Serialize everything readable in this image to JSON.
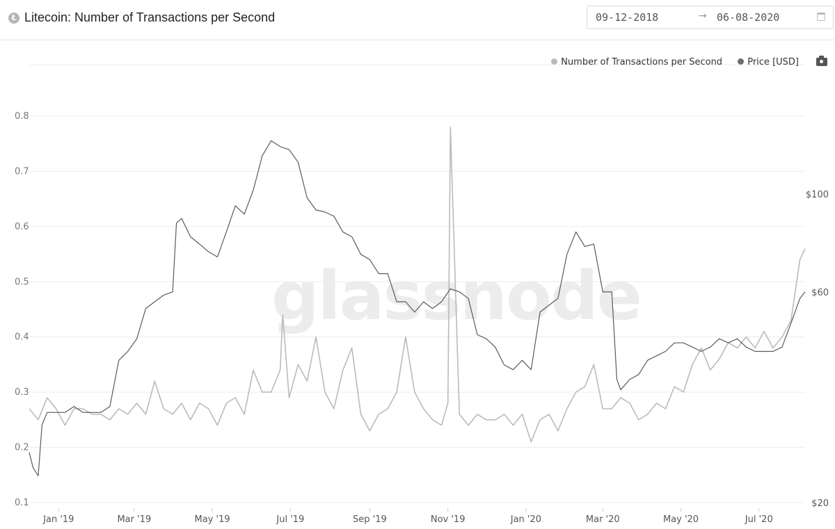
{
  "header": {
    "title": "Litecoin: Number of Transactions per Second",
    "coin_icon": "litecoin-icon",
    "date_from": "09-12-2018",
    "date_arrow": "→",
    "date_to": "06-08-2020"
  },
  "watermark": "glassnode",
  "legend": [
    {
      "label": "Number of Transactions per Second",
      "color": "#bdb9b9"
    },
    {
      "label": "Price [USD]",
      "color": "#6e6e6e"
    }
  ],
  "colors": {
    "tps_line": "#bdb9b9",
    "price_line": "#5a5a5a",
    "grid": "#ececec",
    "axis_text": "#666666"
  },
  "chart_data": {
    "type": "line",
    "x_ticks": [
      "Jan '19",
      "Mar '19",
      "May '19",
      "Jul '19",
      "Sep '19",
      "Nov '19",
      "Jan '20",
      "Mar '20",
      "May '20",
      "Jul '20"
    ],
    "y_left": {
      "ticks": [
        "0.1",
        "0.2",
        "0.3",
        "0.4",
        "0.5",
        "0.6",
        "0.7",
        "0.8"
      ],
      "range": [
        0.1,
        0.8
      ]
    },
    "y_right": {
      "ticks": [
        "$20",
        "$60",
        "$100"
      ],
      "scale": "log"
    },
    "grid": true,
    "legend_position": "top-right",
    "series": [
      {
        "name": "Number of Transactions per Second",
        "axis": "left",
        "x": [
          "2018-12-09",
          "2018-12-16",
          "2018-12-23",
          "2018-12-30",
          "2019-01-06",
          "2019-01-13",
          "2019-01-20",
          "2019-01-27",
          "2019-02-03",
          "2019-02-10",
          "2019-02-17",
          "2019-02-24",
          "2019-03-03",
          "2019-03-10",
          "2019-03-17",
          "2019-03-24",
          "2019-03-31",
          "2019-04-07",
          "2019-04-14",
          "2019-04-21",
          "2019-04-28",
          "2019-05-05",
          "2019-05-12",
          "2019-05-19",
          "2019-05-26",
          "2019-06-02",
          "2019-06-09",
          "2019-06-16",
          "2019-06-23",
          "2019-06-25",
          "2019-06-30",
          "2019-07-07",
          "2019-07-14",
          "2019-07-21",
          "2019-07-28",
          "2019-08-04",
          "2019-08-11",
          "2019-08-18",
          "2019-08-25",
          "2019-09-01",
          "2019-09-08",
          "2019-09-15",
          "2019-09-22",
          "2019-09-29",
          "2019-10-06",
          "2019-10-13",
          "2019-10-20",
          "2019-10-27",
          "2019-11-01",
          "2019-11-03",
          "2019-11-10",
          "2019-11-17",
          "2019-11-24",
          "2019-12-01",
          "2019-12-08",
          "2019-12-15",
          "2019-12-22",
          "2019-12-29",
          "2020-01-05",
          "2020-01-12",
          "2020-01-19",
          "2020-01-26",
          "2020-02-02",
          "2020-02-09",
          "2020-02-16",
          "2020-02-23",
          "2020-03-01",
          "2020-03-08",
          "2020-03-15",
          "2020-03-22",
          "2020-03-29",
          "2020-04-05",
          "2020-04-12",
          "2020-04-19",
          "2020-04-26",
          "2020-05-03",
          "2020-05-10",
          "2020-05-17",
          "2020-05-24",
          "2020-05-31",
          "2020-06-07",
          "2020-06-14",
          "2020-06-21",
          "2020-06-28",
          "2020-07-05",
          "2020-07-12",
          "2020-07-19",
          "2020-07-26",
          "2020-08-02",
          "2020-08-06"
        ],
        "values": [
          0.27,
          0.25,
          0.29,
          0.27,
          0.24,
          0.27,
          0.27,
          0.26,
          0.26,
          0.25,
          0.27,
          0.26,
          0.28,
          0.26,
          0.32,
          0.27,
          0.26,
          0.28,
          0.25,
          0.28,
          0.27,
          0.24,
          0.28,
          0.29,
          0.26,
          0.34,
          0.3,
          0.3,
          0.34,
          0.44,
          0.29,
          0.35,
          0.32,
          0.4,
          0.3,
          0.27,
          0.34,
          0.38,
          0.26,
          0.23,
          0.26,
          0.27,
          0.3,
          0.4,
          0.3,
          0.27,
          0.25,
          0.24,
          0.28,
          0.78,
          0.26,
          0.24,
          0.26,
          0.25,
          0.25,
          0.26,
          0.24,
          0.26,
          0.21,
          0.25,
          0.26,
          0.23,
          0.27,
          0.3,
          0.31,
          0.35,
          0.27,
          0.27,
          0.29,
          0.28,
          0.25,
          0.26,
          0.28,
          0.27,
          0.31,
          0.3,
          0.35,
          0.38,
          0.34,
          0.36,
          0.39,
          0.38,
          0.4,
          0.38,
          0.41,
          0.38,
          0.4,
          0.43,
          0.54,
          0.56
        ]
      },
      {
        "name": "Price [USD]",
        "axis": "right",
        "x": [
          "2018-12-09",
          "2018-12-12",
          "2018-12-16",
          "2018-12-19",
          "2018-12-23",
          "2018-12-30",
          "2019-01-06",
          "2019-01-13",
          "2019-01-20",
          "2019-01-27",
          "2019-02-03",
          "2019-02-10",
          "2019-02-17",
          "2019-02-24",
          "2019-03-03",
          "2019-03-10",
          "2019-03-17",
          "2019-03-24",
          "2019-03-31",
          "2019-04-03",
          "2019-04-07",
          "2019-04-14",
          "2019-04-21",
          "2019-04-28",
          "2019-05-05",
          "2019-05-12",
          "2019-05-19",
          "2019-05-26",
          "2019-06-02",
          "2019-06-09",
          "2019-06-16",
          "2019-06-23",
          "2019-06-30",
          "2019-07-07",
          "2019-07-14",
          "2019-07-21",
          "2019-07-28",
          "2019-08-04",
          "2019-08-11",
          "2019-08-18",
          "2019-08-25",
          "2019-09-01",
          "2019-09-08",
          "2019-09-15",
          "2019-09-22",
          "2019-09-29",
          "2019-10-06",
          "2019-10-13",
          "2019-10-20",
          "2019-10-27",
          "2019-11-03",
          "2019-11-10",
          "2019-11-17",
          "2019-11-24",
          "2019-12-01",
          "2019-12-08",
          "2019-12-15",
          "2019-12-22",
          "2019-12-29",
          "2020-01-05",
          "2020-01-12",
          "2020-01-19",
          "2020-01-26",
          "2020-02-02",
          "2020-02-09",
          "2020-02-16",
          "2020-02-23",
          "2020-03-01",
          "2020-03-08",
          "2020-03-12",
          "2020-03-15",
          "2020-03-22",
          "2020-03-29",
          "2020-04-05",
          "2020-04-12",
          "2020-04-19",
          "2020-04-26",
          "2020-05-03",
          "2020-05-10",
          "2020-05-17",
          "2020-05-24",
          "2020-05-31",
          "2020-06-07",
          "2020-06-14",
          "2020-06-21",
          "2020-06-28",
          "2020-07-05",
          "2020-07-12",
          "2020-07-19",
          "2020-07-26",
          "2020-08-02",
          "2020-08-06"
        ],
        "values": [
          26,
          24,
          23,
          30,
          32,
          32,
          32,
          33,
          32,
          32,
          32,
          33,
          42,
          44,
          47,
          55,
          57,
          59,
          60,
          86,
          88,
          80,
          77,
          74,
          72,
          82,
          94,
          90,
          102,
          122,
          132,
          128,
          126,
          118,
          98,
          92,
          91,
          89,
          82,
          80,
          73,
          71,
          66,
          66,
          57,
          57,
          54,
          57,
          55,
          57,
          61,
          60,
          58,
          48,
          47,
          45,
          41,
          40,
          42,
          40,
          54,
          56,
          58,
          73,
          82,
          76,
          77,
          60,
          60,
          38,
          36,
          38,
          39,
          42,
          43,
          44,
          46,
          46,
          45,
          44,
          45,
          47,
          46,
          47,
          45,
          44,
          44,
          44,
          45,
          51,
          58,
          60
        ]
      }
    ]
  }
}
